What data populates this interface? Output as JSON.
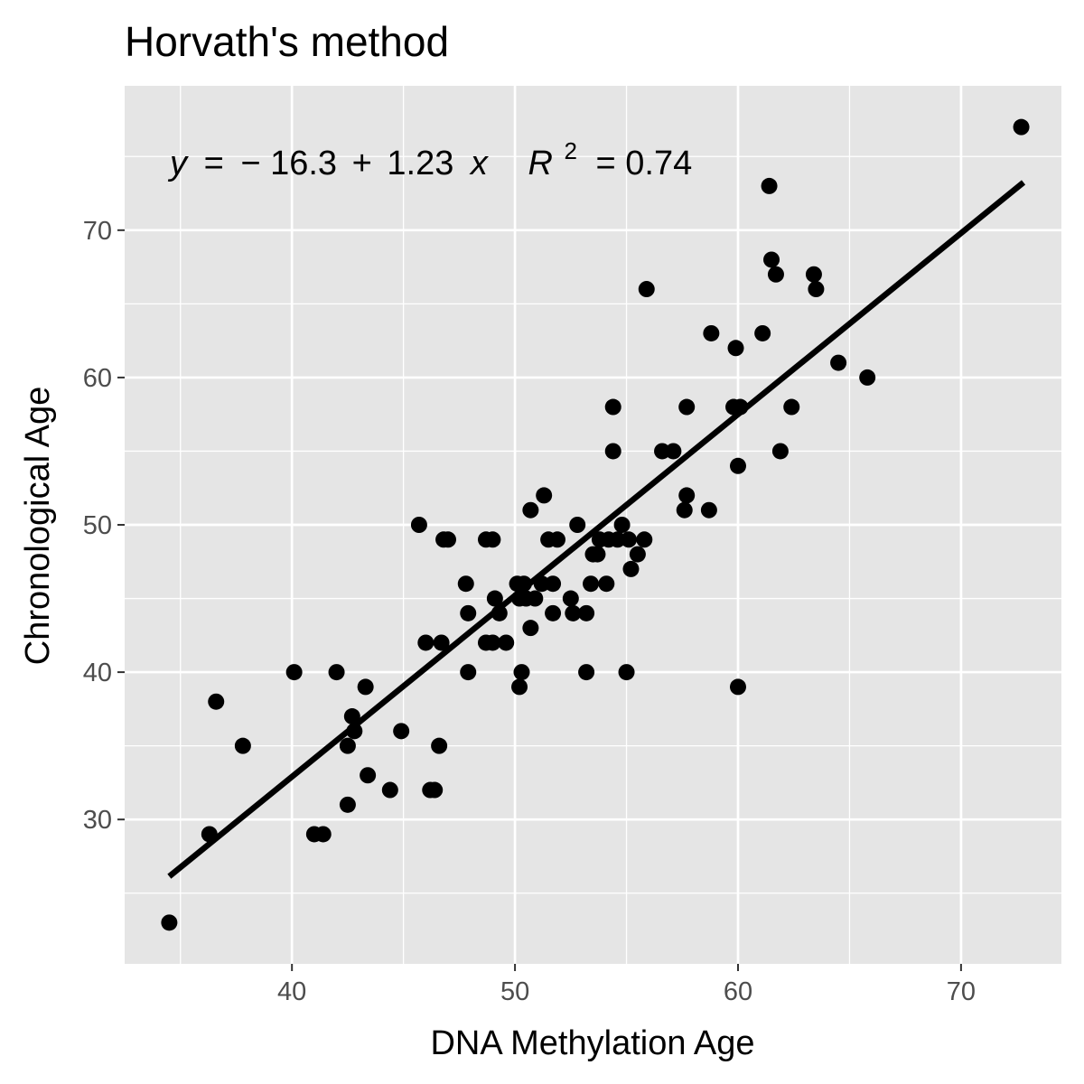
{
  "chart_data": {
    "type": "scatter",
    "title": "Horvath's method",
    "xlabel": "DNA Methylation Age",
    "ylabel": "Chronological Age",
    "xlim": [
      32.5,
      74.5
    ],
    "ylim": [
      20.2,
      79.8
    ],
    "xticks": [
      40,
      50,
      60,
      70
    ],
    "yticks": [
      30,
      40,
      50,
      60,
      70
    ],
    "grid": true,
    "annotation": {
      "y_var": "y",
      "eq_op": "=",
      "intercept": "− 16.3",
      "plus": "+",
      "slope": "1.23",
      "x_var": "x",
      "r_label": "R",
      "r_exp": "2",
      "r_value": "= 0.74"
    },
    "fit_line": {
      "intercept": -16.3,
      "slope": 1.23,
      "x_range": [
        34.5,
        72.8
      ]
    },
    "points": [
      [
        34.5,
        23
      ],
      [
        36.3,
        29
      ],
      [
        36.6,
        38
      ],
      [
        37.8,
        35
      ],
      [
        40.1,
        40
      ],
      [
        41.0,
        29
      ],
      [
        41.4,
        29
      ],
      [
        42.0,
        40
      ],
      [
        42.5,
        35
      ],
      [
        42.5,
        31
      ],
      [
        42.7,
        37
      ],
      [
        42.8,
        36
      ],
      [
        43.3,
        39
      ],
      [
        43.4,
        33
      ],
      [
        44.4,
        32
      ],
      [
        44.9,
        36
      ],
      [
        45.7,
        50
      ],
      [
        46.0,
        42
      ],
      [
        46.2,
        32
      ],
      [
        46.4,
        32
      ],
      [
        46.6,
        35
      ],
      [
        46.7,
        42
      ],
      [
        46.8,
        49
      ],
      [
        47.0,
        49
      ],
      [
        47.8,
        46
      ],
      [
        47.9,
        44
      ],
      [
        47.9,
        40
      ],
      [
        48.7,
        49
      ],
      [
        48.7,
        42
      ],
      [
        49.0,
        42
      ],
      [
        49.0,
        49
      ],
      [
        49.1,
        45
      ],
      [
        49.3,
        44
      ],
      [
        49.6,
        42
      ],
      [
        50.1,
        46
      ],
      [
        50.2,
        39
      ],
      [
        50.2,
        45
      ],
      [
        50.3,
        40
      ],
      [
        50.4,
        46
      ],
      [
        50.5,
        45
      ],
      [
        50.7,
        43
      ],
      [
        50.7,
        51
      ],
      [
        50.9,
        45
      ],
      [
        51.2,
        46
      ],
      [
        51.3,
        52
      ],
      [
        51.5,
        49
      ],
      [
        51.7,
        46
      ],
      [
        51.7,
        44
      ],
      [
        51.9,
        49
      ],
      [
        52.5,
        45
      ],
      [
        52.6,
        44
      ],
      [
        52.8,
        50
      ],
      [
        53.2,
        40
      ],
      [
        53.2,
        44
      ],
      [
        53.4,
        46
      ],
      [
        53.5,
        48
      ],
      [
        53.7,
        48
      ],
      [
        53.8,
        49
      ],
      [
        54.1,
        46
      ],
      [
        54.2,
        49
      ],
      [
        54.4,
        58
      ],
      [
        54.4,
        55
      ],
      [
        54.6,
        49
      ],
      [
        54.8,
        50
      ],
      [
        55.0,
        40
      ],
      [
        55.1,
        49
      ],
      [
        55.2,
        47
      ],
      [
        55.5,
        48
      ],
      [
        55.8,
        49
      ],
      [
        55.9,
        66
      ],
      [
        56.6,
        55
      ],
      [
        57.1,
        55
      ],
      [
        57.6,
        51
      ],
      [
        57.7,
        52
      ],
      [
        57.7,
        58
      ],
      [
        58.7,
        51
      ],
      [
        58.8,
        63
      ],
      [
        59.8,
        58
      ],
      [
        59.9,
        62
      ],
      [
        60.0,
        39
      ],
      [
        60.0,
        54
      ],
      [
        60.1,
        58
      ],
      [
        61.1,
        63
      ],
      [
        61.4,
        73
      ],
      [
        61.5,
        68
      ],
      [
        61.7,
        67
      ],
      [
        61.9,
        55
      ],
      [
        62.4,
        58
      ],
      [
        63.4,
        67
      ],
      [
        63.5,
        66
      ],
      [
        64.5,
        61
      ],
      [
        65.8,
        60
      ],
      [
        72.7,
        77
      ]
    ]
  }
}
